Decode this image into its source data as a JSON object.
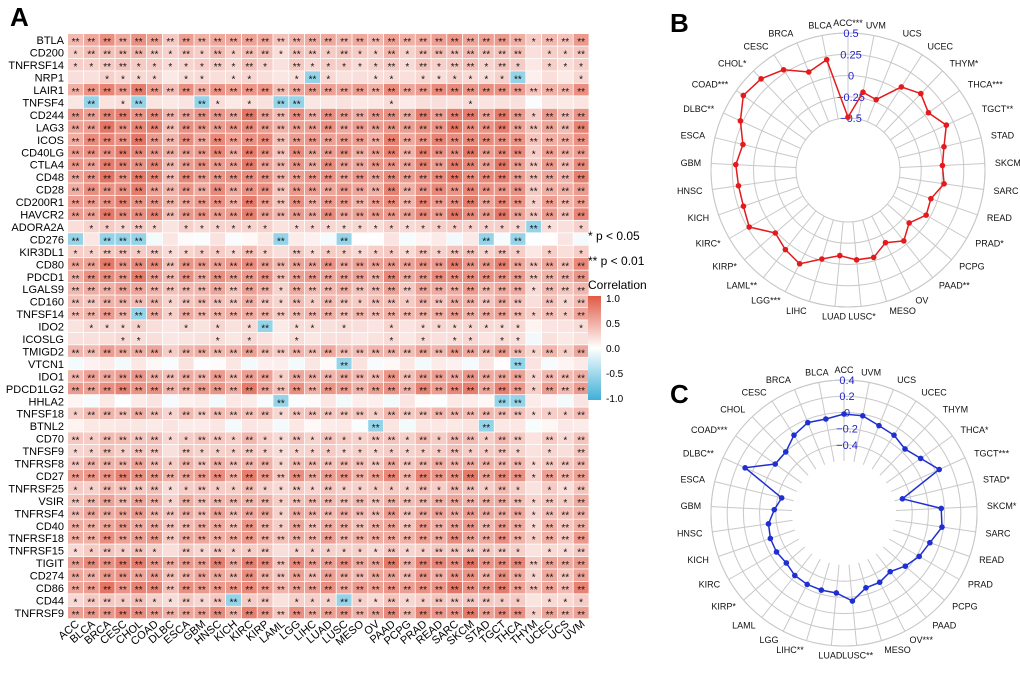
{
  "panels": {
    "a": {
      "letter": "A"
    },
    "b": {
      "letter": "B"
    },
    "c": {
      "letter": "C"
    }
  },
  "legend": {
    "sig1": "* p < 0.05",
    "sig2": "** p < 0.01",
    "title": "Correlation",
    "ticks": [
      "1.0",
      "0.5",
      "0.0",
      "-0.5",
      "-1.0"
    ]
  },
  "colors": {
    "pos": "#e05a45",
    "neg": "#3fb0d6",
    "neutral": "#ffffff",
    "radarB": "#e41a1c",
    "radarC": "#1f2fd1",
    "radarTickB": "#2222cc",
    "radarTickC": "#2222cc",
    "grid": "#c8c8c8"
  },
  "chart_data": [
    {
      "type": "heatmap",
      "id": "heatmap",
      "title": "",
      "rows": [
        "BTLA",
        "CD200",
        "TNFRSF14",
        "NRP1",
        "LAIR1",
        "TNFSF4",
        "CD244",
        "LAG3",
        "ICOS",
        "CD40LG",
        "CTLA4",
        "CD48",
        "CD28",
        "CD200R1",
        "HAVCR2",
        "ADORA2A",
        "CD276",
        "KIR3DL1",
        "CD80",
        "PDCD1",
        "LGALS9",
        "CD160",
        "TNFSF14",
        "IDO2",
        "ICOSLG",
        "TMIGD2",
        "VTCN1",
        "IDO1",
        "PDCD1LG2",
        "HHLA2",
        "TNFSF18",
        "BTNL2",
        "CD70",
        "TNFSF9",
        "TNFRSF8",
        "CD27",
        "TNFRSF25",
        "VSIR",
        "TNFRSF4",
        "CD40",
        "TNFRSF18",
        "TNFRSF15",
        "TIGIT",
        "CD274",
        "CD86",
        "CD44",
        "TNFRSF9"
      ],
      "columns": [
        "ACC",
        "BLCA",
        "BRCA",
        "CESC",
        "CHOL",
        "COAD",
        "DLBC",
        "ESCA",
        "GBM",
        "HNSC",
        "KICH",
        "KIRC",
        "KIRP",
        "LAML",
        "LGG",
        "LIHC",
        "LUAD",
        "LUSC",
        "MESO",
        "OV",
        "PAAD",
        "PCPG",
        "PRAD",
        "READ",
        "SARC",
        "SKCM",
        "STAD",
        "TGCT",
        "THCA",
        "THYM",
        "UCEC",
        "UCS",
        "UVM"
      ],
      "row_strength": [
        0.62,
        0.42,
        0.35,
        0.25,
        0.72,
        0.2,
        0.75,
        0.75,
        0.75,
        0.75,
        0.75,
        0.78,
        0.72,
        0.72,
        0.75,
        0.3,
        0.05,
        0.35,
        0.72,
        0.72,
        0.55,
        0.45,
        0.55,
        0.25,
        0.22,
        0.55,
        0.1,
        0.6,
        0.72,
        0.12,
        0.45,
        0.15,
        0.4,
        0.35,
        0.5,
        0.72,
        0.38,
        0.52,
        0.58,
        0.58,
        0.62,
        0.35,
        0.78,
        0.62,
        0.75,
        0.35,
        0.72
      ],
      "col_strength": [
        0.75,
        0.85,
        1.0,
        0.95,
        1.0,
        0.9,
        0.6,
        0.85,
        0.8,
        0.9,
        0.75,
        1.0,
        0.85,
        0.55,
        0.85,
        0.75,
        0.85,
        0.8,
        0.75,
        0.75,
        0.95,
        0.7,
        0.95,
        0.9,
        1.0,
        1.0,
        0.85,
        1.0,
        0.85,
        0.45,
        0.75,
        0.6,
        0.9
      ],
      "neg_cells": [
        [
          5,
          1
        ],
        [
          5,
          4
        ],
        [
          5,
          8
        ],
        [
          5,
          13
        ],
        [
          5,
          14
        ],
        [
          16,
          0
        ],
        [
          16,
          2
        ],
        [
          16,
          3
        ],
        [
          16,
          4
        ],
        [
          16,
          13
        ],
        [
          16,
          17
        ],
        [
          16,
          26
        ],
        [
          16,
          28
        ],
        [
          29,
          27
        ],
        [
          29,
          28
        ],
        [
          26,
          28
        ],
        [
          26,
          17
        ],
        [
          31,
          19
        ],
        [
          31,
          26
        ],
        [
          22,
          4
        ],
        [
          23,
          12
        ],
        [
          45,
          10
        ],
        [
          45,
          17
        ],
        [
          3,
          28
        ],
        [
          15,
          29
        ],
        [
          3,
          15
        ],
        [
          29,
          13
        ]
      ],
      "min": -1,
      "max": 1,
      "significance_marks": [
        "*",
        "**"
      ]
    },
    {
      "type": "radar",
      "id": "radarB",
      "axes": [
        "ACC***",
        "UVM",
        "UCS",
        "UCEC",
        "THYM*",
        "THCA***",
        "TGCT**",
        "STAD",
        "SKCM",
        "SARC",
        "READ",
        "PRAD*",
        "PCPG",
        "PAAD**",
        "OV",
        "MESO",
        "LUSC*",
        "LUAD",
        "LIHC",
        "LGG***",
        "LAML**",
        "KIRP*",
        "KIRC*",
        "KICH",
        "HNSC",
        "GBM",
        "ESCA",
        "DLBC**",
        "COAD***",
        "CHOL*",
        "CESC",
        "BRCA",
        "BLCA"
      ],
      "values": [
        -0.49,
        -0.18,
        -0.22,
        0.05,
        0.13,
        0.05,
        0.16,
        0.05,
        0.0,
        0.03,
        -0.08,
        -0.05,
        -0.16,
        -0.05,
        -0.15,
        -0.04,
        -0.05,
        -0.1,
        -0.02,
        0.13,
        0.08,
        0.02,
        0.23,
        0.19,
        0.19,
        0.21,
        0.16,
        0.28,
        0.4,
        0.37,
        0.29,
        0.13,
        0.21
      ],
      "rmin": -0.5,
      "rmax": 0.5,
      "rticks": [
        0.5,
        0.25,
        0,
        -0.25,
        -0.5
      ],
      "rtick_labels": [
        "0.5",
        "0.25",
        "0",
        "−0.25",
        "−0.5"
      ]
    },
    {
      "type": "radar",
      "id": "radarC",
      "axes": [
        "ACC",
        "UVM",
        "UCS",
        "UCEC",
        "THYM",
        "THCA*",
        "TGCT***",
        "STAD*",
        "SKCM*",
        "SARC",
        "READ",
        "PRAD",
        "PCPG",
        "PAAD",
        "OV***",
        "MESO",
        "LUSC**",
        "LUAD",
        "LIHC**",
        "LGG",
        "LAML",
        "KIRP*",
        "KIRC",
        "KICH",
        "HNSC",
        "GBM",
        "ESCA",
        "DLBC**",
        "COAD***",
        "CHOL",
        "CESC",
        "BRCA",
        "BLCA"
      ],
      "values": [
        -0.02,
        -0.02,
        -0.08,
        -0.1,
        -0.15,
        -0.08,
        0.05,
        -0.5,
        -0.04,
        -0.02,
        -0.12,
        -0.17,
        -0.24,
        -0.32,
        -0.28,
        -0.28,
        -0.15,
        -0.25,
        -0.25,
        -0.25,
        -0.26,
        -0.3,
        -0.28,
        -0.28,
        -0.3,
        -0.38,
        -0.45,
        0.1,
        -0.2,
        -0.2,
        -0.1,
        -0.04,
        -0.06
      ],
      "rmin": -0.6,
      "rmax": 0.4,
      "rticks": [
        0.4,
        0.2,
        0,
        -0.2,
        -0.4
      ],
      "rtick_labels": [
        "0.4",
        "0.2",
        "0",
        "−0.2",
        "−0.4"
      ]
    }
  ]
}
